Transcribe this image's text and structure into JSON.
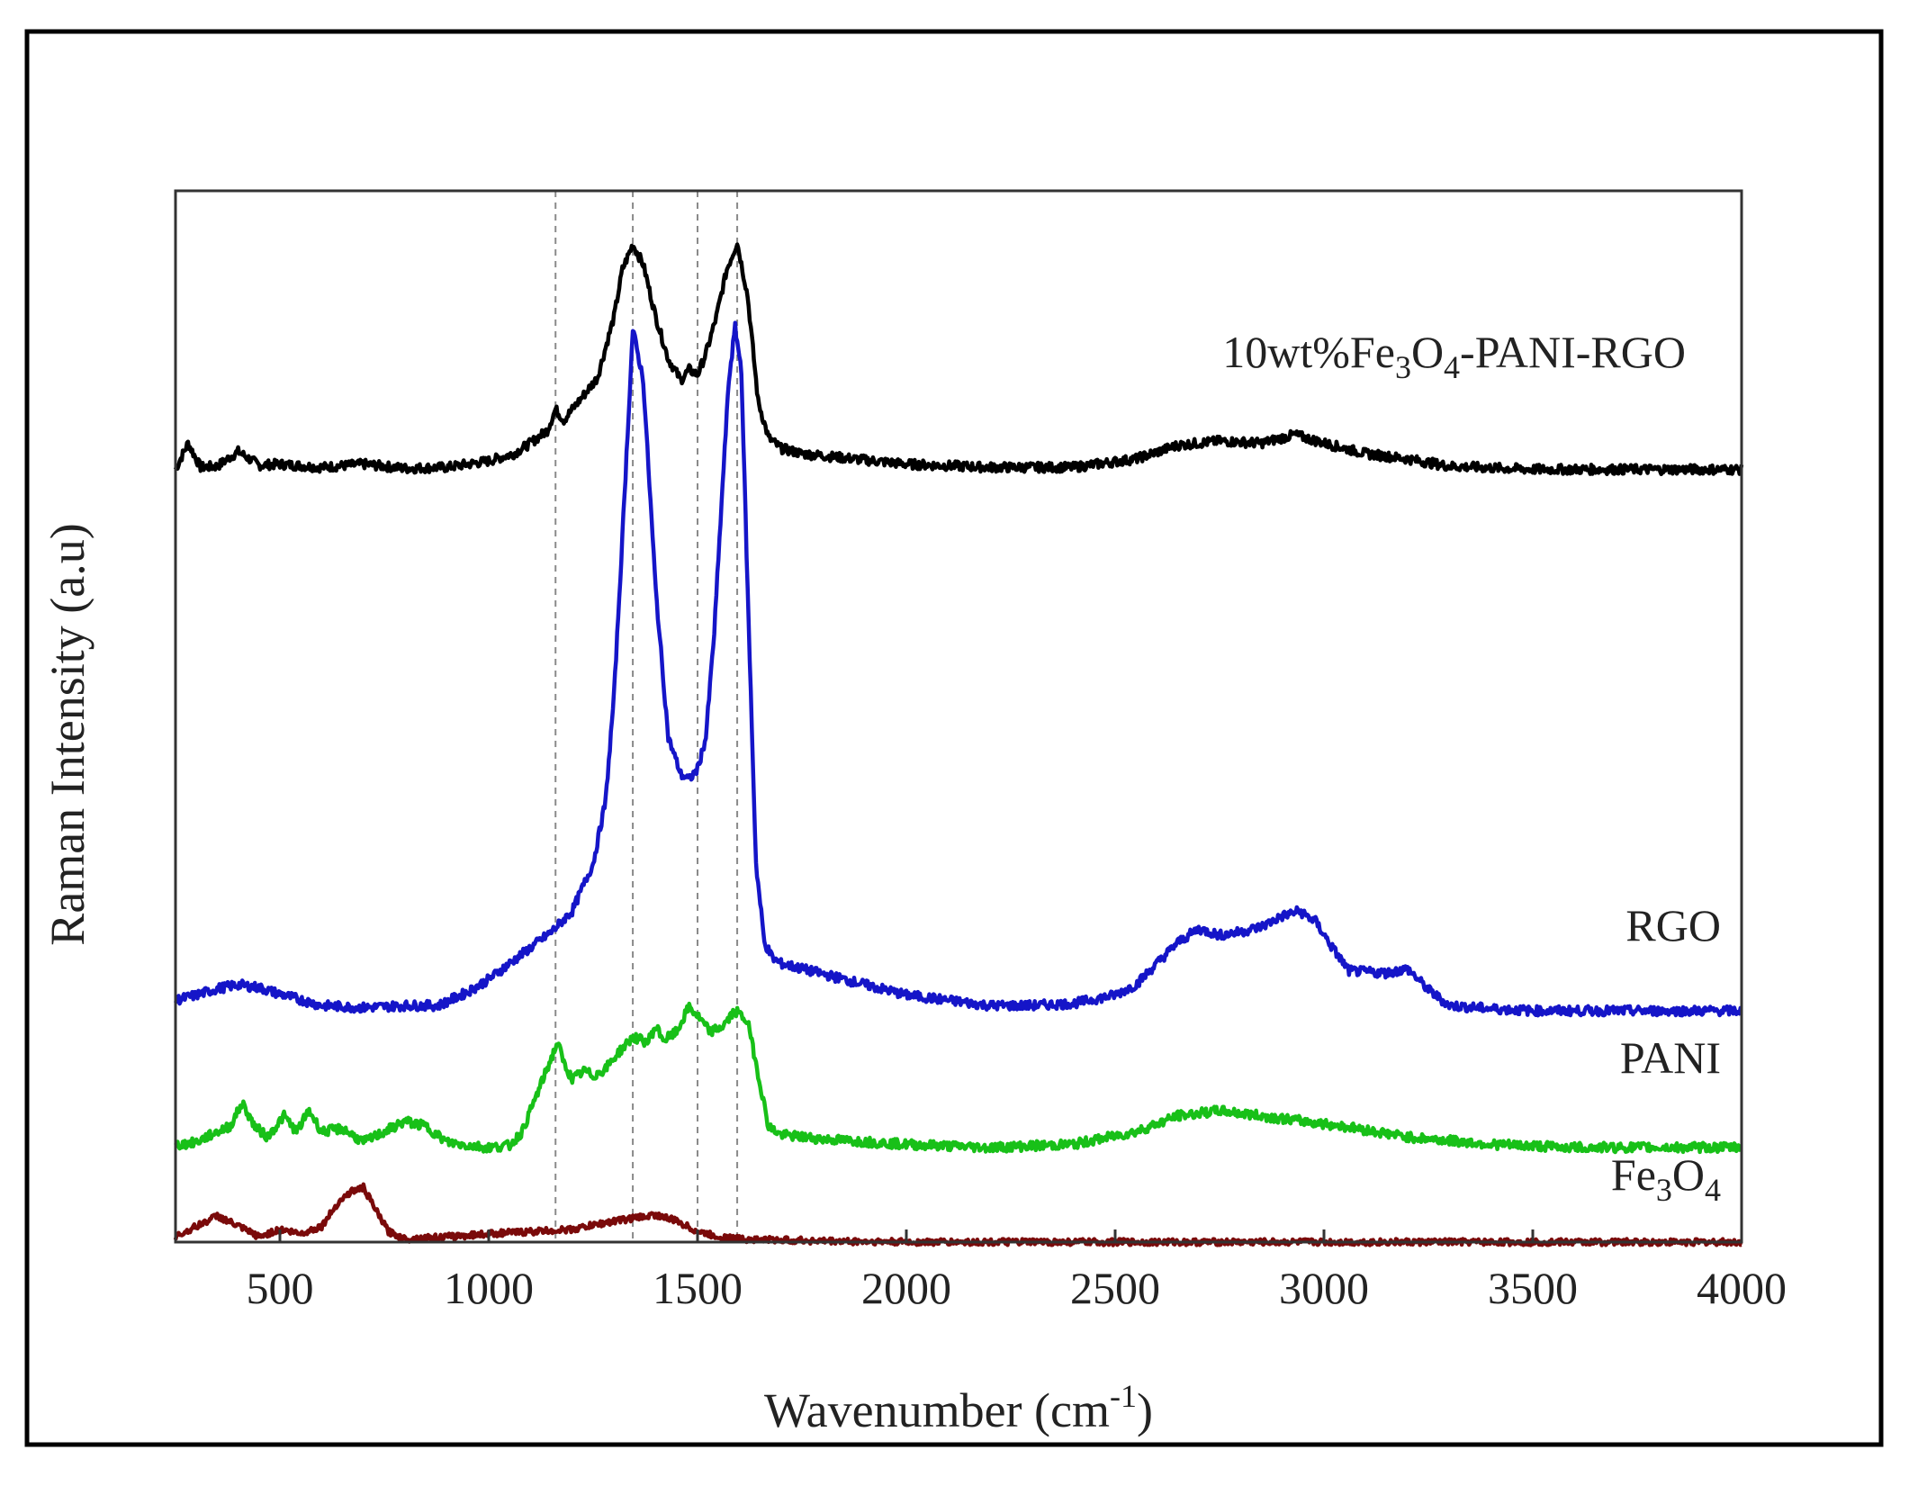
{
  "chart_data": {
    "type": "line",
    "title": "",
    "xlabel": "Wavenumber (cm",
    "xlabel_sup": "-1",
    "xlabel_suffix": ")",
    "ylabel": "Raman Intensity (a.u)",
    "xlim": [
      250,
      4000
    ],
    "ylim": [
      0,
      100
    ],
    "xticks": [
      500,
      1000,
      1500,
      2000,
      2500,
      3000,
      3500,
      4000
    ],
    "xtick_labels": [
      "500",
      "1000",
      "1500",
      "2000",
      "2500",
      "3000",
      "3500",
      "4000"
    ],
    "yticks": [],
    "grid": false,
    "reference_lines": [
      1160,
      1345,
      1500,
      1595
    ],
    "series": [
      {
        "label_parts": [
          [
            "10wt%Fe",
            "n"
          ],
          [
            "3",
            "sub"
          ],
          [
            "O",
            "n"
          ],
          [
            "4",
            "sub"
          ],
          [
            "-PANI-RGO",
            "n"
          ]
        ],
        "color": "#000000",
        "x": [
          250,
          280,
          310,
          350,
          400,
          450,
          500,
          600,
          700,
          800,
          900,
          1000,
          1060,
          1100,
          1140,
          1160,
          1180,
          1220,
          1260,
          1300,
          1320,
          1345,
          1370,
          1400,
          1430,
          1460,
          1480,
          1500,
          1520,
          1545,
          1570,
          1595,
          1620,
          1645,
          1670,
          1700,
          1750,
          1800,
          2000,
          2200,
          2400,
          2550,
          2650,
          2750,
          2850,
          2930,
          3000,
          3100,
          3200,
          3300,
          3500,
          3700,
          4000
        ],
        "y": [
          73.5,
          76.0,
          73.7,
          73.8,
          75.2,
          73.9,
          74.0,
          73.7,
          74.0,
          73.6,
          73.7,
          74.3,
          75.0,
          76.0,
          77.2,
          79.2,
          78.2,
          80.2,
          82.2,
          88.0,
          92.5,
          94.9,
          93.0,
          88.0,
          84.0,
          82.0,
          83.0,
          82.5,
          84.5,
          88.0,
          92.5,
          95.1,
          90.0,
          80.0,
          76.5,
          75.5,
          75.0,
          74.8,
          74.0,
          73.7,
          73.7,
          74.5,
          75.8,
          76.2,
          76.0,
          76.8,
          76.0,
          75.0,
          74.5,
          73.8,
          73.5,
          73.5,
          73.5
        ]
      },
      {
        "label": "RGO",
        "color": "#1515c8",
        "x": [
          250,
          300,
          350,
          400,
          450,
          500,
          600,
          700,
          800,
          880,
          950,
          1000,
          1050,
          1100,
          1150,
          1200,
          1250,
          1280,
          1300,
          1320,
          1345,
          1370,
          1400,
          1430,
          1460,
          1480,
          1500,
          1520,
          1540,
          1560,
          1575,
          1590,
          1605,
          1620,
          1640,
          1660,
          1680,
          1700,
          1750,
          1800,
          1900,
          2000,
          2100,
          2200,
          2300,
          2400,
          2500,
          2550,
          2600,
          2650,
          2700,
          2750,
          2800,
          2850,
          2900,
          2940,
          2980,
          3020,
          3060,
          3100,
          3150,
          3200,
          3250,
          3300,
          3400,
          3500,
          3700,
          4000
        ],
        "y": [
          23.0,
          23.5,
          24.1,
          24.5,
          24.2,
          23.6,
          22.5,
          22.3,
          22.5,
          22.5,
          23.8,
          25.0,
          26.5,
          28.0,
          29.5,
          31.5,
          36.0,
          42.0,
          52.0,
          67.0,
          86.8,
          82.0,
          62.0,
          48.0,
          44.5,
          44.0,
          45.0,
          48.0,
          58.0,
          72.0,
          82.0,
          87.0,
          83.0,
          62.0,
          36.0,
          28.5,
          27.0,
          26.5,
          26.0,
          25.5,
          24.5,
          23.5,
          23.0,
          22.5,
          22.5,
          22.7,
          23.5,
          24.5,
          26.5,
          28.5,
          29.8,
          29.2,
          29.5,
          30.0,
          31.0,
          31.5,
          30.5,
          28.0,
          25.8,
          25.7,
          25.6,
          26.0,
          24.0,
          22.5,
          22.2,
          22.0,
          22.0,
          22.0
        ]
      },
      {
        "label": "PANI",
        "color": "#18c018",
        "x": [
          250,
          300,
          350,
          380,
          410,
          440,
          470,
          510,
          540,
          570,
          600,
          650,
          700,
          750,
          800,
          850,
          900,
          950,
          1000,
          1050,
          1080,
          1120,
          1150,
          1165,
          1180,
          1200,
          1230,
          1250,
          1280,
          1310,
          1345,
          1380,
          1400,
          1420,
          1450,
          1480,
          1500,
          1530,
          1560,
          1590,
          1620,
          1645,
          1670,
          1700,
          1800,
          2000,
          2200,
          2400,
          2550,
          2650,
          2750,
          2850,
          2950,
          3050,
          3200,
          3400,
          3600,
          4000
        ],
        "y": [
          9.2,
          9.5,
          10.5,
          11.0,
          13.2,
          11.0,
          10.0,
          12.0,
          10.5,
          12.5,
          10.5,
          10.8,
          9.5,
          10.5,
          11.5,
          11.0,
          9.5,
          9.2,
          9.0,
          9.2,
          10.5,
          14.5,
          17.5,
          19.0,
          17.0,
          15.5,
          16.3,
          15.8,
          16.5,
          18.0,
          19.5,
          19.0,
          20.5,
          19.2,
          20.0,
          22.4,
          21.5,
          20.0,
          20.5,
          22.0,
          21.0,
          16.0,
          11.0,
          10.2,
          9.8,
          9.3,
          9.0,
          9.3,
          10.5,
          12.0,
          12.5,
          12.0,
          11.5,
          11.0,
          10.0,
          9.3,
          9.0,
          9.0
        ]
      },
      {
        "label_parts": [
          [
            "Fe",
            "n"
          ],
          [
            "3",
            "sub"
          ],
          [
            "O",
            "n"
          ],
          [
            "4",
            "sub"
          ]
        ],
        "color": "#7a0a0a",
        "x": [
          250,
          300,
          350,
          400,
          450,
          500,
          550,
          600,
          640,
          670,
          700,
          730,
          760,
          800,
          900,
          1000,
          1100,
          1200,
          1300,
          1350,
          1400,
          1450,
          1500,
          1550,
          1600,
          1700,
          1800,
          2000,
          2500,
          3000,
          3500,
          4000
        ],
        "y": [
          0.5,
          1.5,
          2.5,
          1.5,
          0.5,
          1.2,
          0.8,
          1.5,
          3.8,
          4.8,
          5.2,
          3.0,
          1.0,
          0.3,
          0.5,
          0.8,
          1.0,
          1.2,
          2.0,
          2.3,
          2.6,
          2.0,
          1.0,
          0.5,
          0.3,
          0.2,
          0.1,
          0.0,
          0.0,
          0.0,
          0.0,
          0.0
        ]
      }
    ]
  }
}
